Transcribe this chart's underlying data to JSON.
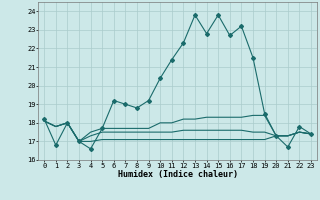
{
  "xlabel": "Humidex (Indice chaleur)",
  "bg_color": "#cce8e8",
  "grid_color": "#aacccc",
  "line_color": "#1a6b6b",
  "xlim": [
    -0.5,
    23.5
  ],
  "ylim": [
    16,
    24.5
  ],
  "yticks": [
    16,
    17,
    18,
    19,
    20,
    21,
    22,
    23,
    24
  ],
  "xticks": [
    0,
    1,
    2,
    3,
    4,
    5,
    6,
    7,
    8,
    9,
    10,
    11,
    12,
    13,
    14,
    15,
    16,
    17,
    18,
    19,
    20,
    21,
    22,
    23
  ],
  "line1_x": [
    0,
    1,
    2,
    3,
    4,
    5,
    6,
    7,
    8,
    9,
    10,
    11,
    12,
    13,
    14,
    15,
    16,
    17,
    18,
    19,
    20,
    21,
    22,
    23
  ],
  "line1_y": [
    18.2,
    16.8,
    18.0,
    17.0,
    16.6,
    17.7,
    19.2,
    19.0,
    18.8,
    19.2,
    20.4,
    21.4,
    22.3,
    23.8,
    22.8,
    23.8,
    22.7,
    23.2,
    21.5,
    18.5,
    17.3,
    16.7,
    17.8,
    17.4
  ],
  "line2_x": [
    0,
    1,
    2,
    3,
    4,
    5,
    6,
    7,
    8,
    9,
    10,
    11,
    12,
    13,
    14,
    15,
    16,
    17,
    18,
    19,
    20,
    21,
    22,
    23
  ],
  "line2_y": [
    18.1,
    17.8,
    18.0,
    17.0,
    17.5,
    17.7,
    17.7,
    17.7,
    17.7,
    17.7,
    18.0,
    18.0,
    18.2,
    18.2,
    18.3,
    18.3,
    18.3,
    18.3,
    18.4,
    18.4,
    17.3,
    17.3,
    17.5,
    17.4
  ],
  "line3_x": [
    0,
    1,
    2,
    3,
    4,
    5,
    6,
    7,
    8,
    9,
    10,
    11,
    12,
    13,
    14,
    15,
    16,
    17,
    18,
    19,
    20,
    21,
    22,
    23
  ],
  "line3_y": [
    18.1,
    17.8,
    18.0,
    17.0,
    17.3,
    17.5,
    17.5,
    17.5,
    17.5,
    17.5,
    17.5,
    17.5,
    17.6,
    17.6,
    17.6,
    17.6,
    17.6,
    17.6,
    17.5,
    17.5,
    17.3,
    17.3,
    17.5,
    17.4
  ],
  "line4_x": [
    0,
    1,
    2,
    3,
    4,
    5,
    6,
    7,
    8,
    9,
    10,
    11,
    12,
    13,
    14,
    15,
    16,
    17,
    18,
    19,
    20,
    21,
    22,
    23
  ],
  "line4_y": [
    18.1,
    17.8,
    18.0,
    17.0,
    17.0,
    17.1,
    17.1,
    17.1,
    17.1,
    17.1,
    17.1,
    17.1,
    17.1,
    17.1,
    17.1,
    17.1,
    17.1,
    17.1,
    17.1,
    17.1,
    17.3,
    17.3,
    17.5,
    17.4
  ]
}
